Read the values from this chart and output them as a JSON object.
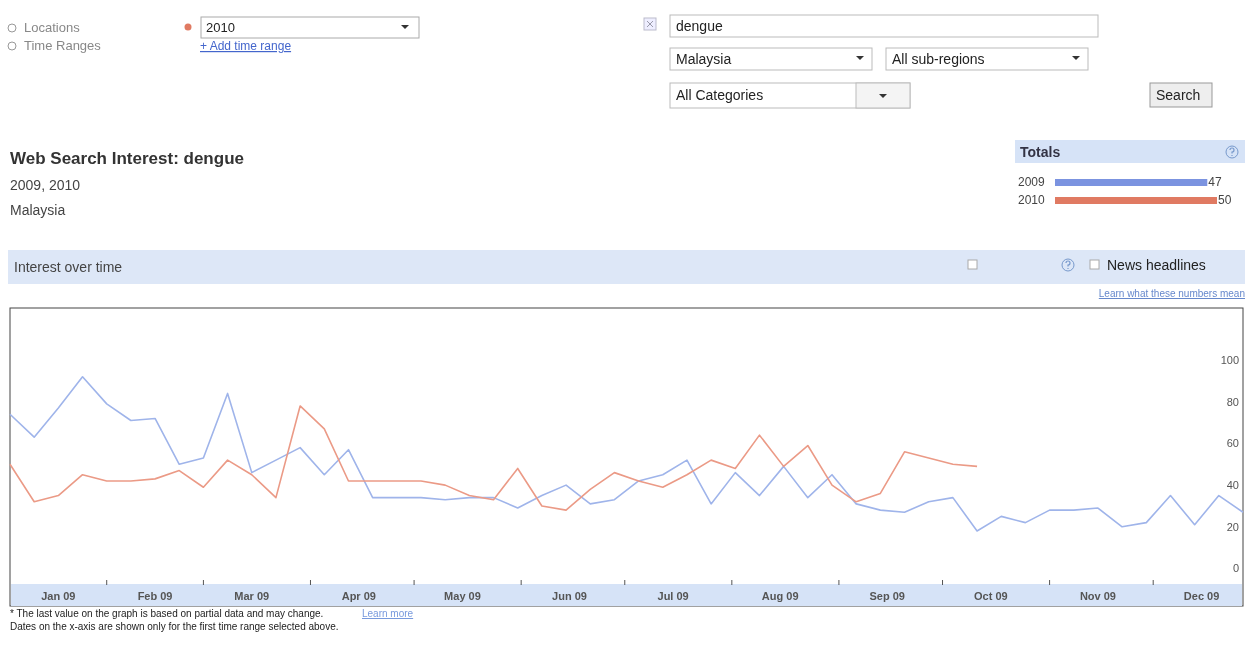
{
  "chart_data": [
    {
      "type": "line",
      "x": [
        "2009-01-04",
        "2009-01-11",
        "2009-01-18",
        "2009-01-25",
        "2009-02-01",
        "2009-02-08",
        "2009-02-15",
        "2009-02-22",
        "2009-03-01",
        "2009-03-08",
        "2009-03-15",
        "2009-03-22",
        "2009-03-29",
        "2009-04-05",
        "2009-04-12",
        "2009-04-19",
        "2009-04-26",
        "2009-05-03",
        "2009-05-10",
        "2009-05-17",
        "2009-05-24",
        "2009-05-31",
        "2009-06-07",
        "2009-06-14",
        "2009-06-21",
        "2009-06-28",
        "2009-07-05",
        "2009-07-12",
        "2009-07-19",
        "2009-07-26",
        "2009-08-02",
        "2009-08-09",
        "2009-08-16",
        "2009-08-23",
        "2009-08-30",
        "2009-09-06",
        "2009-09-13",
        "2009-09-20",
        "2009-09-27",
        "2009-10-04",
        "2009-10-11",
        "2009-10-18",
        "2009-10-25",
        "2009-11-01",
        "2009-11-08",
        "2009-11-15",
        "2009-11-22",
        "2009-11-29",
        "2009-12-06",
        "2009-12-13",
        "2009-12-20",
        "2009-12-27"
      ],
      "series": [
        {
          "color": "#9fb4ea",
          "values": [
            74,
            63,
            77,
            92,
            79,
            71,
            72,
            50,
            53,
            84,
            46,
            52,
            58,
            45,
            57,
            34,
            34,
            34,
            33,
            34,
            34,
            29,
            35,
            40,
            31,
            33,
            42,
            45,
            52,
            31,
            46,
            35,
            49,
            34,
            45,
            31,
            28,
            27,
            32,
            34,
            18,
            25,
            22,
            28,
            28,
            29,
            20,
            22,
            35,
            21,
            35,
            27
          ]
        },
        {
          "color": "#eb9a86",
          "values": [
            50,
            32,
            35,
            45,
            42,
            42,
            43,
            47,
            39,
            52,
            45,
            34,
            78,
            67,
            42,
            42,
            42,
            42,
            40,
            35,
            33,
            48,
            30,
            28,
            38,
            46,
            42,
            39,
            45,
            52,
            48,
            64,
            49,
            59,
            40,
            32,
            36,
            56,
            53,
            50,
            49,
            null,
            null,
            null,
            null,
            null,
            null,
            null,
            null,
            null,
            null,
            null
          ]
        }
      ],
      "xlim": [
        "2009-01-04",
        "2009-12-27"
      ],
      "xticks": [
        {
          "value": "2009-01-18",
          "label": "Jan 09"
        },
        {
          "value": "2009-02-01",
          "label": null
        },
        {
          "value": "2009-02-15",
          "label": "Feb 09"
        },
        {
          "value": "2009-03-01",
          "label": null
        },
        {
          "value": "2009-03-15",
          "label": "Mar 09"
        },
        {
          "value": "2009-04-01",
          "label": null
        },
        {
          "value": "2009-04-15",
          "label": "Apr 09"
        },
        {
          "value": "2009-05-01",
          "label": null
        },
        {
          "value": "2009-05-15",
          "label": "May 09"
        },
        {
          "value": "2009-06-01",
          "label": null
        },
        {
          "value": "2009-06-15",
          "label": "Jun 09"
        },
        {
          "value": "2009-07-01",
          "label": null
        },
        {
          "value": "2009-07-15",
          "label": "Jul 09"
        },
        {
          "value": "2009-08-01",
          "label": null
        },
        {
          "value": "2009-08-15",
          "label": "Aug 09"
        },
        {
          "value": "2009-09-01",
          "label": null
        },
        {
          "value": "2009-09-15",
          "label": "Sep 09"
        },
        {
          "value": "2009-10-01",
          "label": null
        },
        {
          "value": "2009-10-15",
          "label": "Oct 09"
        },
        {
          "value": "2009-11-01",
          "label": null
        },
        {
          "value": "2009-11-15",
          "label": "Nov 09"
        },
        {
          "value": "2009-12-01",
          "label": null
        },
        {
          "value": "2009-12-15",
          "label": "Dec 09"
        }
      ],
      "ylim": [
        -18,
        125
      ],
      "yticks": [
        0,
        20,
        40,
        60,
        80,
        100
      ],
      "grid": false,
      "annotations": [
        "Web Search Interest: dengue",
        "2009, 2010",
        "Locations",
        "Time Ranges",
        "2010",
        "+ Add time range",
        "dengue",
        "Malaysia",
        "All sub-regions",
        "All Categories",
        "Search",
        "Malaysia",
        "Interest over time",
        "News headlines",
        "Learn what these numbers mean",
        "* The last value on the graph is based on partial data and may change.",
        "Learn more",
        "Dates on the x-axis are shown only for the first time range selected above."
      ]
    },
    {
      "type": "bar",
      "title": "Totals",
      "orientation": "horizontal",
      "categories": [
        "2009",
        "2010"
      ],
      "values": [
        47,
        50
      ],
      "colors": [
        "#7b93e0",
        "#e07a62"
      ],
      "xlim": [
        0,
        50
      ],
      "data_labels": true,
      "tick_labels": "y"
    }
  ]
}
